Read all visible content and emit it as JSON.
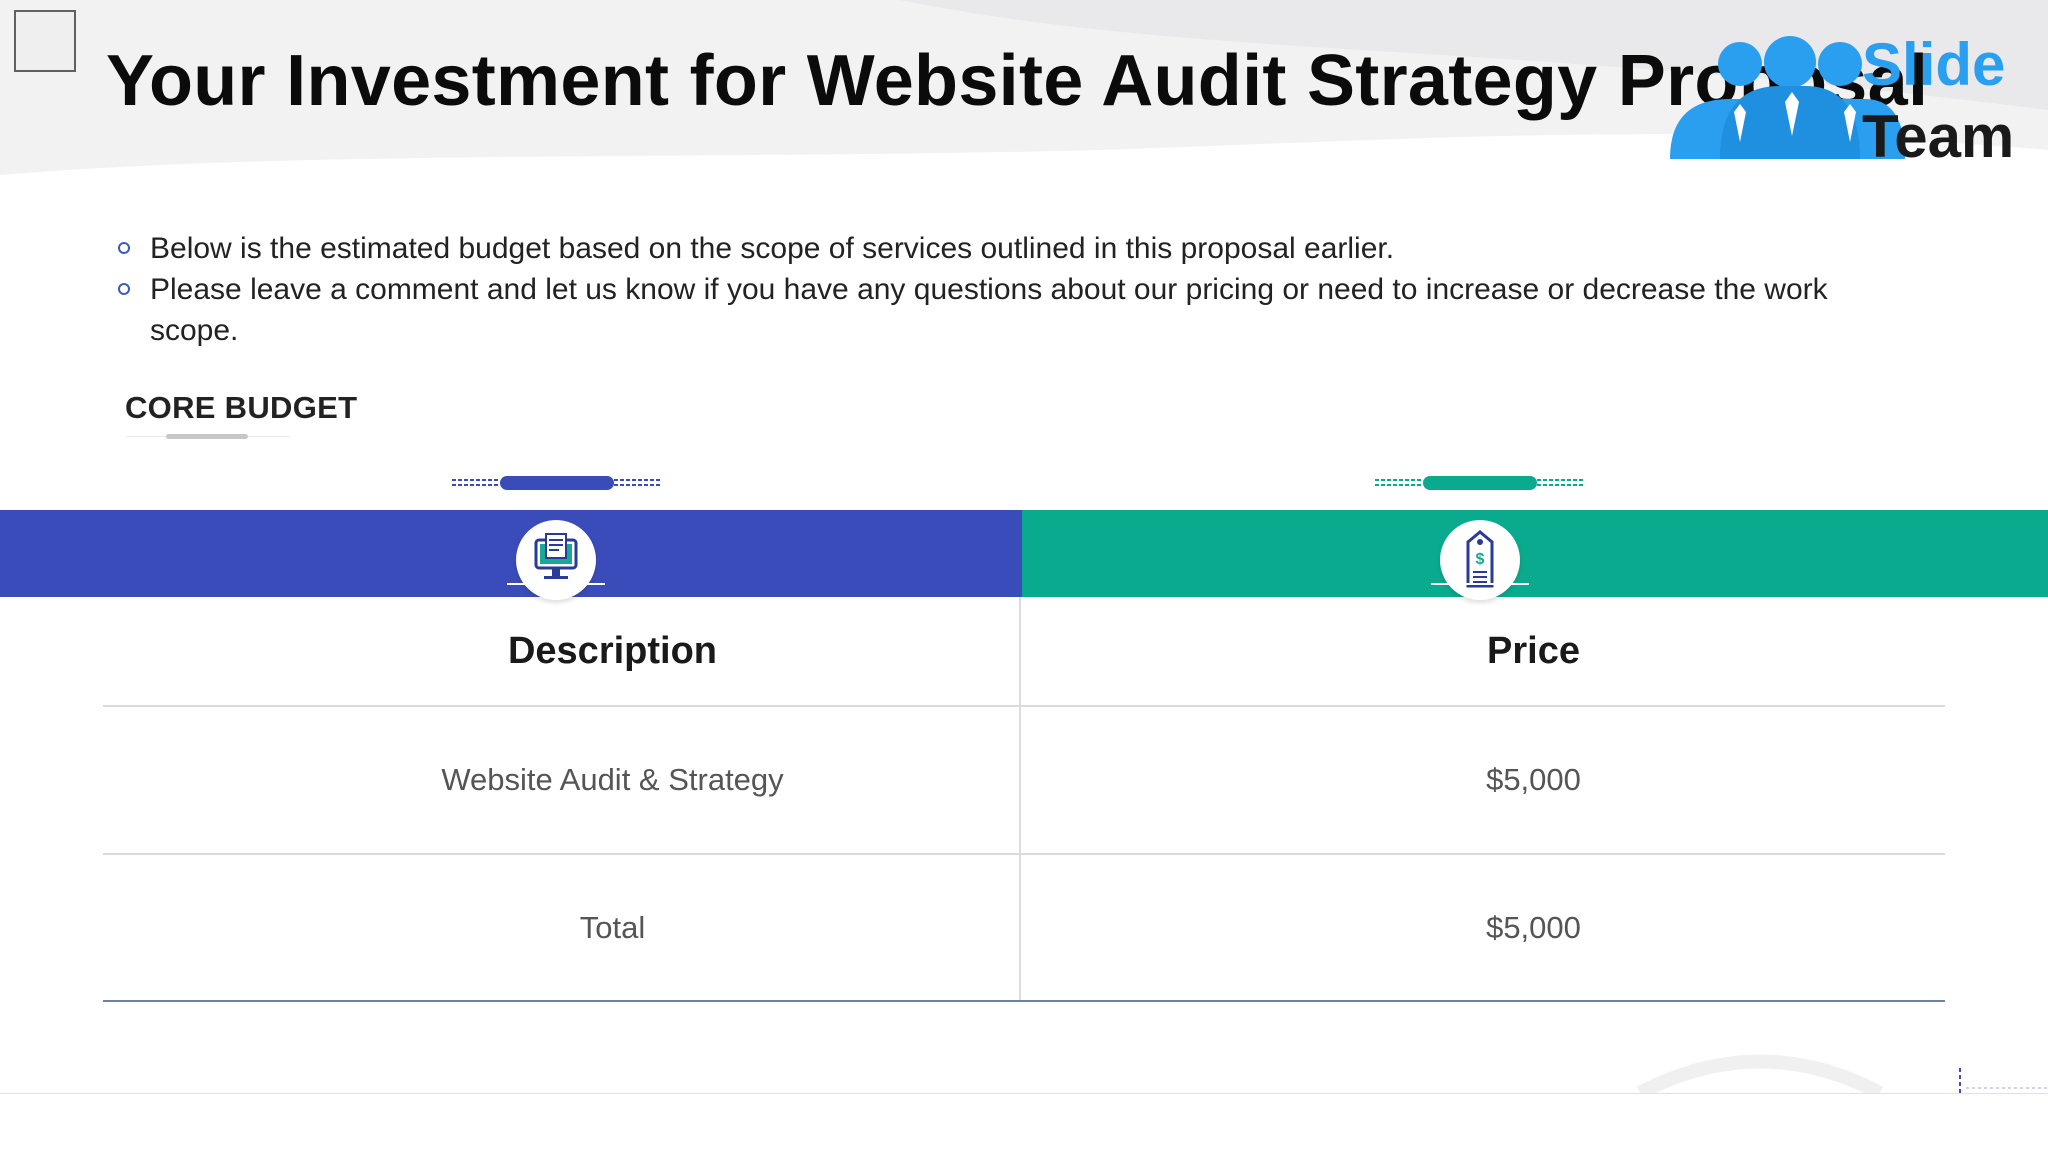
{
  "slide": {
    "title": "Your Investment for Website Audit Strategy Proposal",
    "logo": {
      "line1": "Slide",
      "line2": "Team"
    },
    "bullets": [
      "Below is the estimated budget based on the scope of services outlined in this proposal earlier.",
      "Please leave a comment and let us know if you have any questions about our pricing or need to increase or decrease the work scope."
    ],
    "section_label": "CORE BUDGET",
    "table": {
      "headers": [
        "Description",
        "Price"
      ],
      "rows": [
        [
          "Website Audit & Strategy",
          "$5,000"
        ],
        [
          "Total",
          "$5,000"
        ]
      ]
    }
  },
  "colors": {
    "title": "#0b0b0b",
    "logo_blue": "#2a9ff0",
    "band_left": "#3a4cba",
    "band_right": "#0aaa8e",
    "bullet_ring": "#3c5ab9"
  },
  "icons": {
    "left_band": "computer-document-icon",
    "right_band": "price-tag-icon",
    "logo": "team-people-icon"
  }
}
